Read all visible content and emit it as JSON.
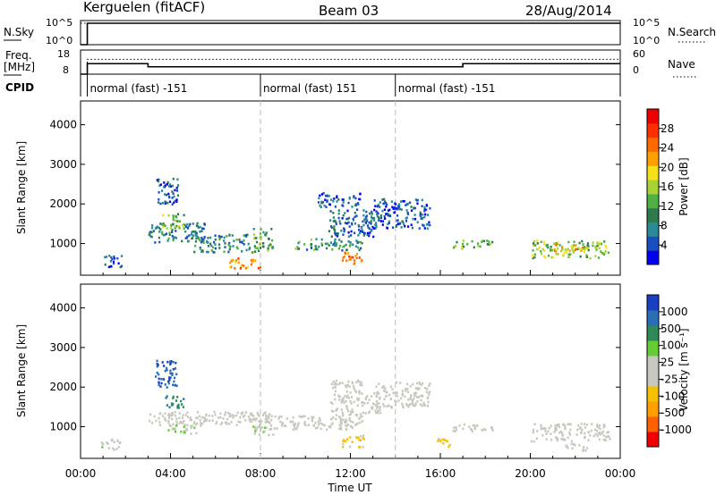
{
  "header": {
    "station": "Kerguelen (fitACF)",
    "beam": "Beam 03",
    "date": "28/Aug/2014"
  },
  "left_labels": {
    "nsky": "N.Sky",
    "freq_line1": "Freq.",
    "freq_line2": "[MHz]",
    "cpid": "CPID"
  },
  "right_labels": {
    "nsearch": "N.Search",
    "nave": "Nave"
  },
  "chart_data": [
    {
      "type": "line",
      "panel": "noise",
      "left_ticks": [
        "10^5",
        "10^0"
      ],
      "right_ticks": [
        "10^5",
        "10^0"
      ],
      "series": [
        {
          "name": "N.Sky",
          "x_hours": [
            0,
            0.3,
            0.3,
            24
          ],
          "values": [
            0,
            0,
            5,
            5
          ]
        },
        {
          "name": "N.Search",
          "x_hours": [
            0,
            24
          ],
          "values": [
            5,
            5
          ]
        }
      ]
    },
    {
      "type": "line",
      "panel": "frequency",
      "left_ticks": [
        "18",
        "8"
      ],
      "right_ticks": [
        "60",
        "0"
      ],
      "series": [
        {
          "name": "Freq",
          "x_hours": [
            0,
            0.3,
            0.3,
            3.0,
            3.0,
            17.0,
            17.0,
            24
          ],
          "values": [
            8,
            8,
            12.7,
            12.7,
            11.3,
            11.3,
            12.7,
            12.7
          ]
        },
        {
          "name": "Nave",
          "x_hours": [
            0,
            0.3,
            0.3,
            24
          ],
          "values": [
            0,
            0,
            40,
            40
          ]
        }
      ]
    },
    {
      "type": "table",
      "panel": "cpid",
      "segments": [
        {
          "start": 0.3,
          "end": 8.0,
          "label": "normal (fast) -151"
        },
        {
          "start": 8.0,
          "end": 14.0,
          "label": "normal (fast) 151"
        },
        {
          "start": 14.0,
          "end": 24.0,
          "label": "normal (fast) -151"
        }
      ]
    },
    {
      "type": "heatmap",
      "panel": "power",
      "ylabel": "Slant Range [km]",
      "ylim": [
        200,
        4600
      ],
      "yticks": [
        1000,
        2000,
        3000,
        4000
      ],
      "xlim": [
        0,
        24
      ],
      "colorbar": {
        "label": "Power [dB]",
        "range": [
          0,
          32
        ],
        "ticks": [
          "28",
          "24",
          "20",
          "16",
          "12",
          "8",
          "4"
        ],
        "colors": [
          "#0000ee",
          "#1a4fc2",
          "#2a8a96",
          "#2e7a4e",
          "#4fb043",
          "#a8d236",
          "#f5e01a",
          "#ffa000",
          "#ff6a00",
          "#ff3000",
          "#ee0000"
        ]
      },
      "regions": [
        {
          "t0": 0.9,
          "t1": 1.8,
          "r0": 420,
          "r1": 720,
          "value": 6
        },
        {
          "t0": 3.0,
          "t1": 5.5,
          "r0": 1050,
          "r1": 1550,
          "value": 8
        },
        {
          "t0": 3.6,
          "t1": 4.6,
          "r0": 1400,
          "r1": 1800,
          "value": 14
        },
        {
          "t0": 3.3,
          "t1": 4.3,
          "r0": 2000,
          "r1": 2700,
          "value": 5
        },
        {
          "t0": 5.0,
          "t1": 7.5,
          "r0": 800,
          "r1": 1250,
          "value": 9
        },
        {
          "t0": 6.6,
          "t1": 8.0,
          "r0": 400,
          "r1": 650,
          "value": 22
        },
        {
          "t0": 7.6,
          "t1": 8.6,
          "r0": 800,
          "r1": 1400,
          "value": 12
        },
        {
          "t0": 9.5,
          "t1": 12.5,
          "r0": 850,
          "r1": 1150,
          "value": 10
        },
        {
          "t0": 11.6,
          "t1": 12.6,
          "r0": 500,
          "r1": 800,
          "value": 24
        },
        {
          "t0": 11.0,
          "t1": 13.3,
          "r0": 1200,
          "r1": 1900,
          "value": 6
        },
        {
          "t0": 10.4,
          "t1": 12.4,
          "r0": 1950,
          "r1": 2300,
          "value": 5
        },
        {
          "t0": 13.0,
          "t1": 15.5,
          "r0": 1400,
          "r1": 2150,
          "value": 5
        },
        {
          "t0": 16.5,
          "t1": 18.3,
          "r0": 900,
          "r1": 1100,
          "value": 14
        },
        {
          "t0": 20.0,
          "t1": 23.5,
          "r0": 650,
          "r1": 1100,
          "value": 15
        },
        {
          "t0": 21.0,
          "t1": 22.3,
          "r0": 800,
          "r1": 1000,
          "value": 21
        }
      ]
    },
    {
      "type": "heatmap",
      "panel": "velocity",
      "ylabel": "Slant Range [km]",
      "ylim": [
        200,
        4600
      ],
      "yticks": [
        1000,
        2000,
        3000,
        4000
      ],
      "xlim": [
        0,
        24
      ],
      "xlabel": "Time UT",
      "xticks": [
        "00:00",
        "04:00",
        "08:00",
        "12:00",
        "16:00",
        "20:00",
        "00:00"
      ],
      "colorbar": {
        "label": "Velocity [m s⁻¹]",
        "range": [
          -1200,
          1200
        ],
        "ticks": [
          "1000",
          "500",
          "100",
          "25",
          "-25",
          "-100",
          "-500",
          "-1000"
        ],
        "colors": [
          "#ee0000",
          "#ff6000",
          "#ffa000",
          "#f5c000",
          "#c8c8c0",
          "#c8c8c0",
          "#66cc33",
          "#2e8b57",
          "#2a6eb8",
          "#1a3fc0"
        ]
      },
      "regions": [
        {
          "t0": 0.9,
          "t1": 1.8,
          "r0": 420,
          "r1": 720,
          "value": 120
        },
        {
          "t0": 3.0,
          "t1": 8.0,
          "r0": 1050,
          "r1": 1400,
          "value": 0
        },
        {
          "t0": 3.6,
          "t1": 4.6,
          "r0": 1500,
          "r1": 1800,
          "value": 700
        },
        {
          "t0": 3.3,
          "t1": 4.3,
          "r0": 2000,
          "r1": 2700,
          "value": 900
        },
        {
          "t0": 3.8,
          "t1": 5.2,
          "r0": 850,
          "r1": 1150,
          "value": 150
        },
        {
          "t0": 7.6,
          "t1": 8.6,
          "r0": 800,
          "r1": 1400,
          "value": 120
        },
        {
          "t0": 8.2,
          "t1": 12.5,
          "r0": 950,
          "r1": 1300,
          "value": 0
        },
        {
          "t0": 11.6,
          "t1": 12.6,
          "r0": 500,
          "r1": 800,
          "value": -300
        },
        {
          "t0": 11.0,
          "t1": 13.3,
          "r0": 1300,
          "r1": 1800,
          "value": 0
        },
        {
          "t0": 11.0,
          "t1": 12.6,
          "r0": 1800,
          "r1": 2200,
          "value": -70
        },
        {
          "t0": 13.0,
          "t1": 15.5,
          "r0": 1500,
          "r1": 2150,
          "value": 0
        },
        {
          "t0": 15.8,
          "t1": 16.4,
          "r0": 500,
          "r1": 750,
          "value": -350
        },
        {
          "t0": 16.5,
          "t1": 18.3,
          "r0": 900,
          "r1": 1100,
          "value": 0
        },
        {
          "t0": 20.0,
          "t1": 23.5,
          "r0": 650,
          "r1": 1100,
          "value": 0
        },
        {
          "t0": 21.5,
          "t1": 22.5,
          "r0": 400,
          "r1": 600,
          "value": -80
        }
      ]
    }
  ]
}
